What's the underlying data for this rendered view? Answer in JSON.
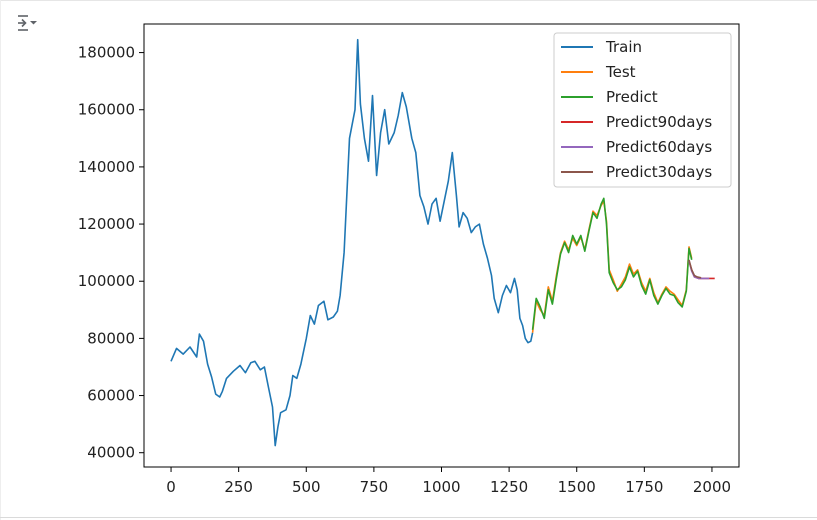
{
  "output_toggle": {
    "icon": "output-toggle-icon"
  },
  "chart_data": {
    "type": "line",
    "title": "",
    "xlabel": "",
    "ylabel": "",
    "xlim": [
      -100,
      2100
    ],
    "ylim": [
      35000,
      190000
    ],
    "x_ticks": [
      0,
      250,
      500,
      750,
      1000,
      1250,
      1500,
      1750,
      2000
    ],
    "y_ticks": [
      40000,
      60000,
      80000,
      100000,
      120000,
      140000,
      160000,
      180000
    ],
    "x_tick_labels": [
      "0",
      "250",
      "500",
      "750",
      "1000",
      "1250",
      "1500",
      "1750",
      "2000"
    ],
    "y_tick_labels": [
      "40000",
      "60000",
      "80000",
      "100000",
      "120000",
      "140000",
      "160000",
      "180000"
    ],
    "grid": false,
    "legend_position": "top-right",
    "series": [
      {
        "name": "Train",
        "color": "#1f77b4",
        "points": [
          [
            0,
            72000
          ],
          [
            20,
            76500
          ],
          [
            45,
            74500
          ],
          [
            70,
            77000
          ],
          [
            95,
            73500
          ],
          [
            105,
            81500
          ],
          [
            120,
            79000
          ],
          [
            135,
            71000
          ],
          [
            150,
            66500
          ],
          [
            165,
            60500
          ],
          [
            180,
            59500
          ],
          [
            190,
            61500
          ],
          [
            205,
            66000
          ],
          [
            230,
            68500
          ],
          [
            255,
            70500
          ],
          [
            275,
            68000
          ],
          [
            295,
            71500
          ],
          [
            310,
            72000
          ],
          [
            330,
            69000
          ],
          [
            345,
            70000
          ],
          [
            360,
            63000
          ],
          [
            375,
            56000
          ],
          [
            385,
            42500
          ],
          [
            395,
            49000
          ],
          [
            405,
            54000
          ],
          [
            425,
            55000
          ],
          [
            440,
            60000
          ],
          [
            450,
            67000
          ],
          [
            465,
            66000
          ],
          [
            480,
            71000
          ],
          [
            500,
            80000
          ],
          [
            515,
            88000
          ],
          [
            530,
            85000
          ],
          [
            545,
            91500
          ],
          [
            565,
            93000
          ],
          [
            580,
            86500
          ],
          [
            600,
            87500
          ],
          [
            615,
            89500
          ],
          [
            625,
            95000
          ],
          [
            640,
            110000
          ],
          [
            660,
            150000
          ],
          [
            680,
            160000
          ],
          [
            690,
            184500
          ],
          [
            700,
            162000
          ],
          [
            715,
            150000
          ],
          [
            730,
            142000
          ],
          [
            745,
            165000
          ],
          [
            760,
            137000
          ],
          [
            775,
            152000
          ],
          [
            790,
            160000
          ],
          [
            805,
            148000
          ],
          [
            825,
            152000
          ],
          [
            840,
            158000
          ],
          [
            855,
            166000
          ],
          [
            870,
            161000
          ],
          [
            890,
            150000
          ],
          [
            905,
            145000
          ],
          [
            920,
            130000
          ],
          [
            935,
            126000
          ],
          [
            950,
            120000
          ],
          [
            965,
            127000
          ],
          [
            980,
            129000
          ],
          [
            995,
            121000
          ],
          [
            1010,
            128000
          ],
          [
            1025,
            135000
          ],
          [
            1040,
            145000
          ],
          [
            1055,
            130000
          ],
          [
            1065,
            119000
          ],
          [
            1080,
            124000
          ],
          [
            1095,
            122000
          ],
          [
            1110,
            117000
          ],
          [
            1125,
            119000
          ],
          [
            1140,
            120000
          ],
          [
            1155,
            113000
          ],
          [
            1170,
            108000
          ],
          [
            1185,
            102000
          ],
          [
            1195,
            94000
          ],
          [
            1210,
            89000
          ],
          [
            1225,
            95000
          ],
          [
            1240,
            98500
          ],
          [
            1255,
            96000
          ],
          [
            1270,
            101000
          ],
          [
            1280,
            97000
          ],
          [
            1290,
            87000
          ],
          [
            1300,
            84500
          ],
          [
            1310,
            80000
          ],
          [
            1320,
            78500
          ],
          [
            1330,
            79000
          ],
          [
            1337,
            82000
          ]
        ]
      },
      {
        "name": "Test",
        "color": "#ff7f0e",
        "points": [
          [
            1337,
            82000
          ],
          [
            1350,
            93000
          ],
          [
            1365,
            90000
          ],
          [
            1380,
            88000
          ],
          [
            1395,
            98000
          ],
          [
            1410,
            93000
          ],
          [
            1425,
            102000
          ],
          [
            1440,
            110000
          ],
          [
            1455,
            114000
          ],
          [
            1470,
            111000
          ],
          [
            1485,
            115000
          ],
          [
            1500,
            112500
          ],
          [
            1515,
            115500
          ],
          [
            1530,
            111000
          ],
          [
            1545,
            118000
          ],
          [
            1560,
            124500
          ],
          [
            1575,
            123000
          ],
          [
            1590,
            126500
          ],
          [
            1600,
            128000
          ],
          [
            1610,
            121000
          ],
          [
            1620,
            104000
          ],
          [
            1635,
            100500
          ],
          [
            1650,
            96500
          ],
          [
            1665,
            99000
          ],
          [
            1680,
            101500
          ],
          [
            1695,
            106000
          ],
          [
            1710,
            102500
          ],
          [
            1725,
            104000
          ],
          [
            1740,
            99500
          ],
          [
            1755,
            96500
          ],
          [
            1770,
            101000
          ],
          [
            1785,
            96000
          ],
          [
            1800,
            92500
          ],
          [
            1815,
            95500
          ],
          [
            1830,
            98000
          ],
          [
            1845,
            96500
          ],
          [
            1860,
            95500
          ],
          [
            1875,
            93500
          ],
          [
            1890,
            91500
          ],
          [
            1905,
            97000
          ],
          [
            1915,
            112000
          ],
          [
            1925,
            108000
          ]
        ]
      },
      {
        "name": "Predict",
        "color": "#2ca02c",
        "points": [
          [
            1337,
            83000
          ],
          [
            1350,
            94000
          ],
          [
            1365,
            91000
          ],
          [
            1380,
            87000
          ],
          [
            1395,
            97000
          ],
          [
            1410,
            92000
          ],
          [
            1425,
            101000
          ],
          [
            1440,
            109500
          ],
          [
            1455,
            113500
          ],
          [
            1470,
            110000
          ],
          [
            1485,
            116000
          ],
          [
            1500,
            113000
          ],
          [
            1515,
            116000
          ],
          [
            1530,
            110500
          ],
          [
            1545,
            117500
          ],
          [
            1560,
            124000
          ],
          [
            1575,
            122000
          ],
          [
            1590,
            127000
          ],
          [
            1600,
            129000
          ],
          [
            1610,
            120000
          ],
          [
            1620,
            103000
          ],
          [
            1635,
            99500
          ],
          [
            1650,
            97000
          ],
          [
            1665,
            98000
          ],
          [
            1680,
            100500
          ],
          [
            1695,
            105000
          ],
          [
            1710,
            101500
          ],
          [
            1725,
            103500
          ],
          [
            1740,
            98500
          ],
          [
            1755,
            95500
          ],
          [
            1770,
            100500
          ],
          [
            1785,
            95000
          ],
          [
            1800,
            92000
          ],
          [
            1815,
            95000
          ],
          [
            1830,
            97500
          ],
          [
            1845,
            95500
          ],
          [
            1860,
            95000
          ],
          [
            1875,
            92500
          ],
          [
            1890,
            91000
          ],
          [
            1905,
            96500
          ],
          [
            1915,
            111500
          ],
          [
            1925,
            107500
          ]
        ]
      },
      {
        "name": "Predict90days",
        "color": "#d62728",
        "points": [
          [
            1915,
            107000
          ],
          [
            1925,
            104000
          ],
          [
            1935,
            101500
          ],
          [
            1950,
            101000
          ],
          [
            1975,
            101000
          ],
          [
            2000,
            101000
          ],
          [
            2010,
            101000
          ]
        ]
      },
      {
        "name": "Predict60days",
        "color": "#9467bd",
        "points": [
          [
            1915,
            107000
          ],
          [
            1925,
            103500
          ],
          [
            1935,
            101500
          ],
          [
            1950,
            101000
          ],
          [
            1975,
            101000
          ],
          [
            1990,
            101000
          ]
        ]
      },
      {
        "name": "Predict30days",
        "color": "#8c564b",
        "points": [
          [
            1915,
            107500
          ],
          [
            1925,
            104000
          ],
          [
            1935,
            102000
          ],
          [
            1945,
            101500
          ],
          [
            1960,
            101200
          ]
        ]
      }
    ]
  }
}
